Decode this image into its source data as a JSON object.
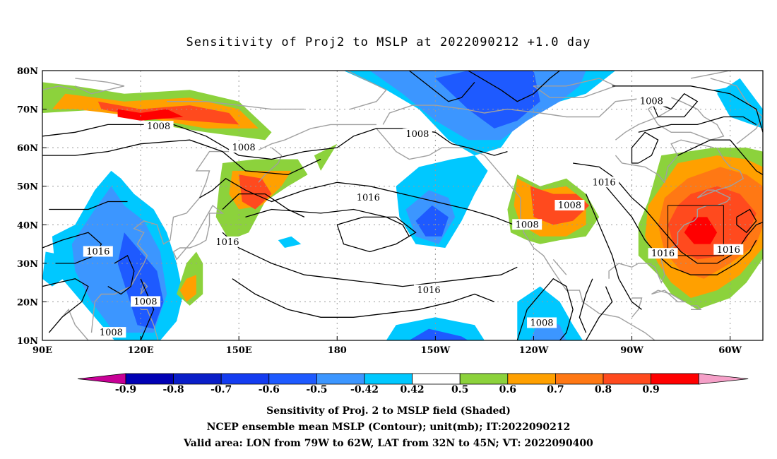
{
  "title": "Sensitivity of Proj2 to MSLP at 2022090212 +1.0 day",
  "map": {
    "lat_labels": [
      "80N",
      "70N",
      "60N",
      "50N",
      "40N",
      "30N",
      "20N",
      "10N"
    ],
    "lon_labels": [
      "90E",
      "120E",
      "150E",
      "180",
      "150W",
      "120W",
      "90W",
      "60W"
    ],
    "contour_labels": [
      {
        "text": "1008",
        "lon": 125.5,
        "lat": 65.5
      },
      {
        "text": "1008",
        "lon": 151.5,
        "lat": 60.0
      },
      {
        "text": "1008",
        "lon": -155.5,
        "lat": 63.5
      },
      {
        "text": "1008",
        "lon": -84.0,
        "lat": 72.0
      },
      {
        "text": "1016",
        "lon": -170.5,
        "lat": 47.0
      },
      {
        "text": "1016",
        "lon": -98.5,
        "lat": 51.0
      },
      {
        "text": "1008",
        "lon": -109.0,
        "lat": 45.0
      },
      {
        "text": "1008",
        "lon": -122.0,
        "lat": 40.0
      },
      {
        "text": "1016",
        "lon": 107.0,
        "lat": 33.0
      },
      {
        "text": "1016",
        "lon": 146.5,
        "lat": 35.5
      },
      {
        "text": "1016",
        "lon": -80.5,
        "lat": 32.5
      },
      {
        "text": "1016",
        "lon": -60.5,
        "lat": 33.5
      },
      {
        "text": "1016",
        "lon": -152.0,
        "lat": 23.0
      },
      {
        "text": "1008",
        "lon": 121.5,
        "lat": 20.0
      },
      {
        "text": "1008",
        "lon": 111.0,
        "lat": 12.0
      },
      {
        "text": "1008",
        "lon": -117.5,
        "lat": 14.5
      }
    ],
    "valid_box": {
      "lon_min": -79,
      "lon_max": -62,
      "lat_min": 32,
      "lat_max": 45
    },
    "colors": {
      "neg_09": "#0000b4",
      "neg_06": "#1e5aff",
      "neg_05": "#3c96ff",
      "neg_042": "#00c8ff",
      "pos_042": "#8cd23c",
      "pos_05": "#ffa000",
      "pos_06": "#ff7814",
      "pos_07": "#ff4a1e",
      "pos_09": "#ff0000"
    }
  },
  "colorbar": {
    "labels": [
      "-0.9",
      "-0.8",
      "-0.7",
      "-0.6",
      "-0.5",
      "-0.42",
      "0.42",
      "0.5",
      "0.6",
      "0.7",
      "0.8",
      "0.9"
    ],
    "colors": [
      "#0000b4",
      "#0a1ec8",
      "#143cf0",
      "#1e5aff",
      "#3c96ff",
      "#00c8ff",
      "#ffffff",
      "#8cd23c",
      "#ffa000",
      "#ff7814",
      "#ff4a1e",
      "#ff0000"
    ],
    "low_arrow_color": "#c80096",
    "high_arrow_color": "#f5a0c8"
  },
  "captions": {
    "line1": "Sensitivity of Proj. 2 to MSLP field (Shaded)",
    "line2": "NCEP ensemble mean MSLP (Contour); unit(mb); IT:2022090212",
    "line3": "Valid area: LON from 79W to 62W, LAT from 32N to 45N; VT: 2022090400"
  }
}
